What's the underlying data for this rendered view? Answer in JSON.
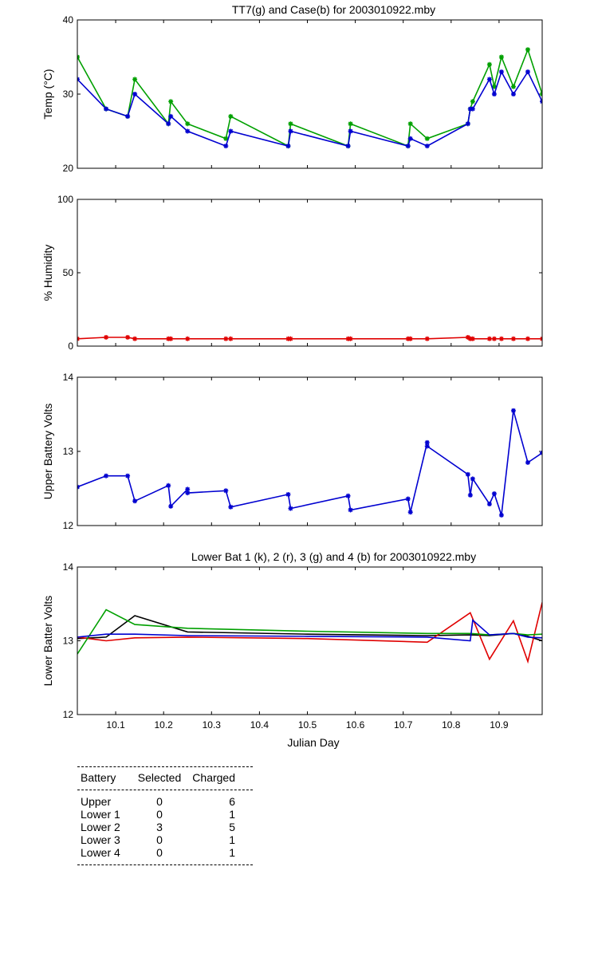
{
  "chart_data": [
    {
      "type": "line",
      "title": "TT7(g) and Case(b) for 2003010922.mby",
      "xlabel": "",
      "ylabel": "Temp  (°C)",
      "xlim": [
        10.02,
        10.99
      ],
      "ylim": [
        20,
        40
      ],
      "yticks": [
        "20",
        "30",
        "40"
      ],
      "xticks": [],
      "markers": true,
      "series": [
        {
          "color": "#00a000",
          "x": [
            10.02,
            10.08,
            10.125,
            10.14,
            10.21,
            10.215,
            10.25,
            10.33,
            10.34,
            10.46,
            10.465,
            10.585,
            10.59,
            10.71,
            10.715,
            10.75,
            10.835,
            10.84,
            10.845,
            10.88,
            10.89,
            10.905,
            10.93,
            10.96,
            10.99
          ],
          "y": [
            35,
            28,
            27,
            32,
            26,
            29,
            26,
            24,
            27,
            23,
            26,
            23,
            26,
            23,
            26,
            24,
            26,
            28,
            29,
            34,
            31,
            35,
            31,
            36,
            30
          ]
        },
        {
          "color": "#0000d0",
          "x": [
            10.02,
            10.08,
            10.125,
            10.14,
            10.21,
            10.215,
            10.25,
            10.33,
            10.34,
            10.46,
            10.465,
            10.585,
            10.59,
            10.71,
            10.715,
            10.75,
            10.835,
            10.84,
            10.845,
            10.88,
            10.89,
            10.905,
            10.93,
            10.96,
            10.99
          ],
          "y": [
            32,
            28,
            27,
            30,
            26,
            27,
            25,
            23,
            25,
            23,
            25,
            23,
            25,
            23,
            24,
            23,
            26,
            28,
            28,
            32,
            30,
            33,
            30,
            33,
            29
          ]
        }
      ]
    },
    {
      "type": "line",
      "title": "",
      "xlabel": "",
      "ylabel": "% Humidity",
      "xlim": [
        10.02,
        10.99
      ],
      "ylim": [
        0,
        100
      ],
      "yticks": [
        "0",
        "50",
        "100"
      ],
      "xticks": [],
      "markers": true,
      "series": [
        {
          "color": "#e00000",
          "x": [
            10.02,
            10.08,
            10.125,
            10.14,
            10.21,
            10.215,
            10.25,
            10.33,
            10.34,
            10.46,
            10.465,
            10.585,
            10.59,
            10.71,
            10.715,
            10.75,
            10.835,
            10.84,
            10.845,
            10.88,
            10.89,
            10.905,
            10.93,
            10.96,
            10.99
          ],
          "y": [
            5,
            6,
            6,
            5,
            5,
            5,
            5,
            5,
            5,
            5,
            5,
            5,
            5,
            5,
            5,
            5,
            6,
            5,
            5,
            5,
            5,
            5,
            5,
            5,
            5
          ]
        }
      ]
    },
    {
      "type": "line",
      "title": "",
      "xlabel": "",
      "ylabel": "Upper Battery Volts",
      "xlim": [
        10.02,
        10.99
      ],
      "ylim": [
        12,
        14
      ],
      "yticks": [
        "12",
        "13",
        "14"
      ],
      "xticks": [],
      "markers": true,
      "series": [
        {
          "color": "#0000d0",
          "x": [
            10.02,
            10.08,
            10.125,
            10.14,
            10.21,
            10.215,
            10.25,
            10.25,
            10.33,
            10.34,
            10.46,
            10.465,
            10.585,
            10.59,
            10.71,
            10.715,
            10.75,
            10.75,
            10.835,
            10.84,
            10.845,
            10.88,
            10.89,
            10.905,
            10.93,
            10.96,
            10.99
          ],
          "y": [
            12.52,
            12.67,
            12.67,
            12.33,
            12.54,
            12.26,
            12.49,
            12.44,
            12.47,
            12.25,
            12.42,
            12.23,
            12.4,
            12.21,
            12.36,
            12.18,
            13.12,
            13.07,
            12.69,
            12.41,
            12.63,
            12.29,
            12.43,
            12.14,
            13.55,
            12.85,
            12.98
          ]
        }
      ]
    },
    {
      "type": "line",
      "title": "Lower Bat 1 (k), 2 (r), 3 (g) and 4 (b) for 2003010922.mby",
      "xlabel": "Julian Day",
      "ylabel": "Lower Batter Volts",
      "xlim": [
        10.02,
        10.99
      ],
      "ylim": [
        12,
        14
      ],
      "yticks": [
        "12",
        "13",
        "14"
      ],
      "xticks": [
        "10.1",
        "10.2",
        "10.3",
        "10.4",
        "10.5",
        "10.6",
        "10.7",
        "10.8",
        "10.9"
      ],
      "xtick_values": [
        10.1,
        10.2,
        10.3,
        10.4,
        10.5,
        10.6,
        10.7,
        10.8,
        10.9
      ],
      "markers": false,
      "series": [
        {
          "color": "#000000",
          "x": [
            10.02,
            10.08,
            10.14,
            10.25,
            10.5,
            10.75,
            10.84,
            10.88,
            10.93,
            10.96,
            10.99
          ],
          "y": [
            13.03,
            13.05,
            13.34,
            13.12,
            13.09,
            13.07,
            13.08,
            13.07,
            13.1,
            13.06,
            13.0
          ]
        },
        {
          "color": "#e00000",
          "x": [
            10.02,
            10.08,
            10.14,
            10.25,
            10.5,
            10.75,
            10.84,
            10.88,
            10.93,
            10.96,
            10.99
          ],
          "y": [
            13.05,
            13.0,
            13.04,
            13.05,
            13.03,
            12.98,
            13.38,
            12.75,
            13.27,
            12.72,
            13.52
          ]
        },
        {
          "color": "#00a000",
          "x": [
            10.02,
            10.08,
            10.14,
            10.25,
            10.5,
            10.75,
            10.84,
            10.88,
            10.93,
            10.96,
            10.99
          ],
          "y": [
            12.82,
            13.42,
            13.22,
            13.17,
            13.13,
            13.1,
            13.1,
            13.08,
            13.1,
            13.08,
            13.09
          ]
        },
        {
          "color": "#0000d0",
          "x": [
            10.02,
            10.08,
            10.14,
            10.25,
            10.5,
            10.75,
            10.84,
            10.845,
            10.88,
            10.93,
            10.96,
            10.99
          ],
          "y": [
            13.05,
            13.09,
            13.09,
            13.07,
            13.06,
            13.05,
            13.0,
            13.28,
            13.08,
            13.1,
            13.05,
            13.04
          ]
        }
      ]
    }
  ],
  "table": {
    "headers": [
      "Battery",
      "Selected",
      "Charged"
    ],
    "rows": [
      [
        "Upper",
        "0",
        "6"
      ],
      [
        "Lower 1",
        "0",
        "1"
      ],
      [
        "Lower 2",
        "3",
        "5"
      ],
      [
        "Lower 3",
        "0",
        "1"
      ],
      [
        "Lower 4",
        "0",
        "1"
      ]
    ]
  }
}
